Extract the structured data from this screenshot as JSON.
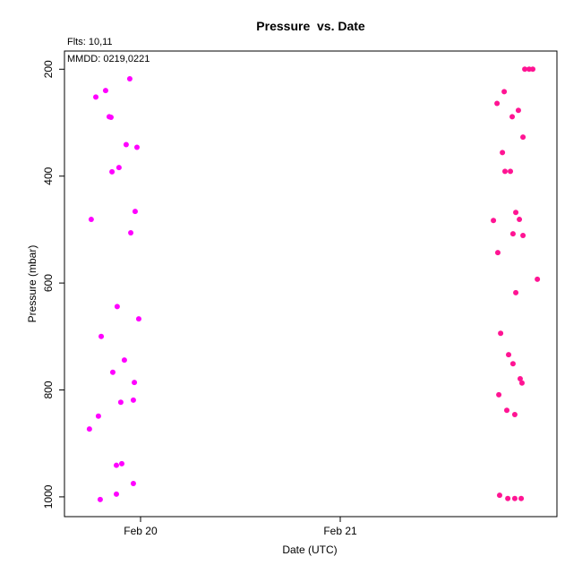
{
  "chart_data": {
    "type": "scatter",
    "title": "Pressure  vs. Date",
    "x_label": "Date (UTC)",
    "y_label": "Pressure (mbar)",
    "annotations": [
      "Flts: 10,11",
      "MMDD: 0219,0221"
    ],
    "xlim": [
      19.619,
      22.085
    ],
    "ylim": [
      1037,
      166
    ],
    "y_reversed": true,
    "xticks": [
      {
        "value": 20,
        "label": "Feb 20"
      },
      {
        "value": 21,
        "label": "Feb 21"
      }
    ],
    "yticks": [
      200,
      400,
      600,
      800,
      1000
    ],
    "series": [
      {
        "color": "#ff00ff",
        "x": [
          19.946,
          19.825,
          19.776,
          19.843,
          19.852,
          19.928,
          19.982,
          19.892,
          19.857,
          19.973,
          19.753,
          19.951,
          19.883,
          19.991,
          19.803,
          19.919,
          19.861,
          19.969,
          19.964,
          19.901,
          19.789,
          19.744,
          19.906,
          19.879,
          19.964,
          19.879,
          19.798
        ],
        "values": [
          218,
          240,
          252,
          289,
          290,
          341,
          346,
          384,
          392,
          466,
          481,
          506,
          644,
          667,
          700,
          744,
          767,
          786,
          819,
          823,
          849,
          873,
          938,
          941,
          975,
          995,
          1005
        ]
      },
      {
        "color": "#ff1493",
        "x": [
          21.924,
          21.946,
          21.964,
          21.821,
          21.785,
          21.892,
          21.861,
          21.915,
          21.812,
          21.825,
          21.852,
          21.879,
          21.767,
          21.897,
          21.865,
          21.915,
          21.789,
          21.987,
          21.879,
          21.803,
          21.843,
          21.865,
          21.901,
          21.91,
          21.794,
          21.834,
          21.874,
          21.798,
          21.839,
          21.874,
          21.906
        ],
        "values": [
          200,
          200,
          200,
          242,
          264,
          277,
          289,
          327,
          356,
          391,
          391,
          468,
          483,
          481,
          508,
          511,
          543,
          593,
          618,
          694,
          734,
          751,
          779,
          787,
          809,
          838,
          846,
          997,
          1003,
          1003,
          1003
        ]
      }
    ]
  }
}
